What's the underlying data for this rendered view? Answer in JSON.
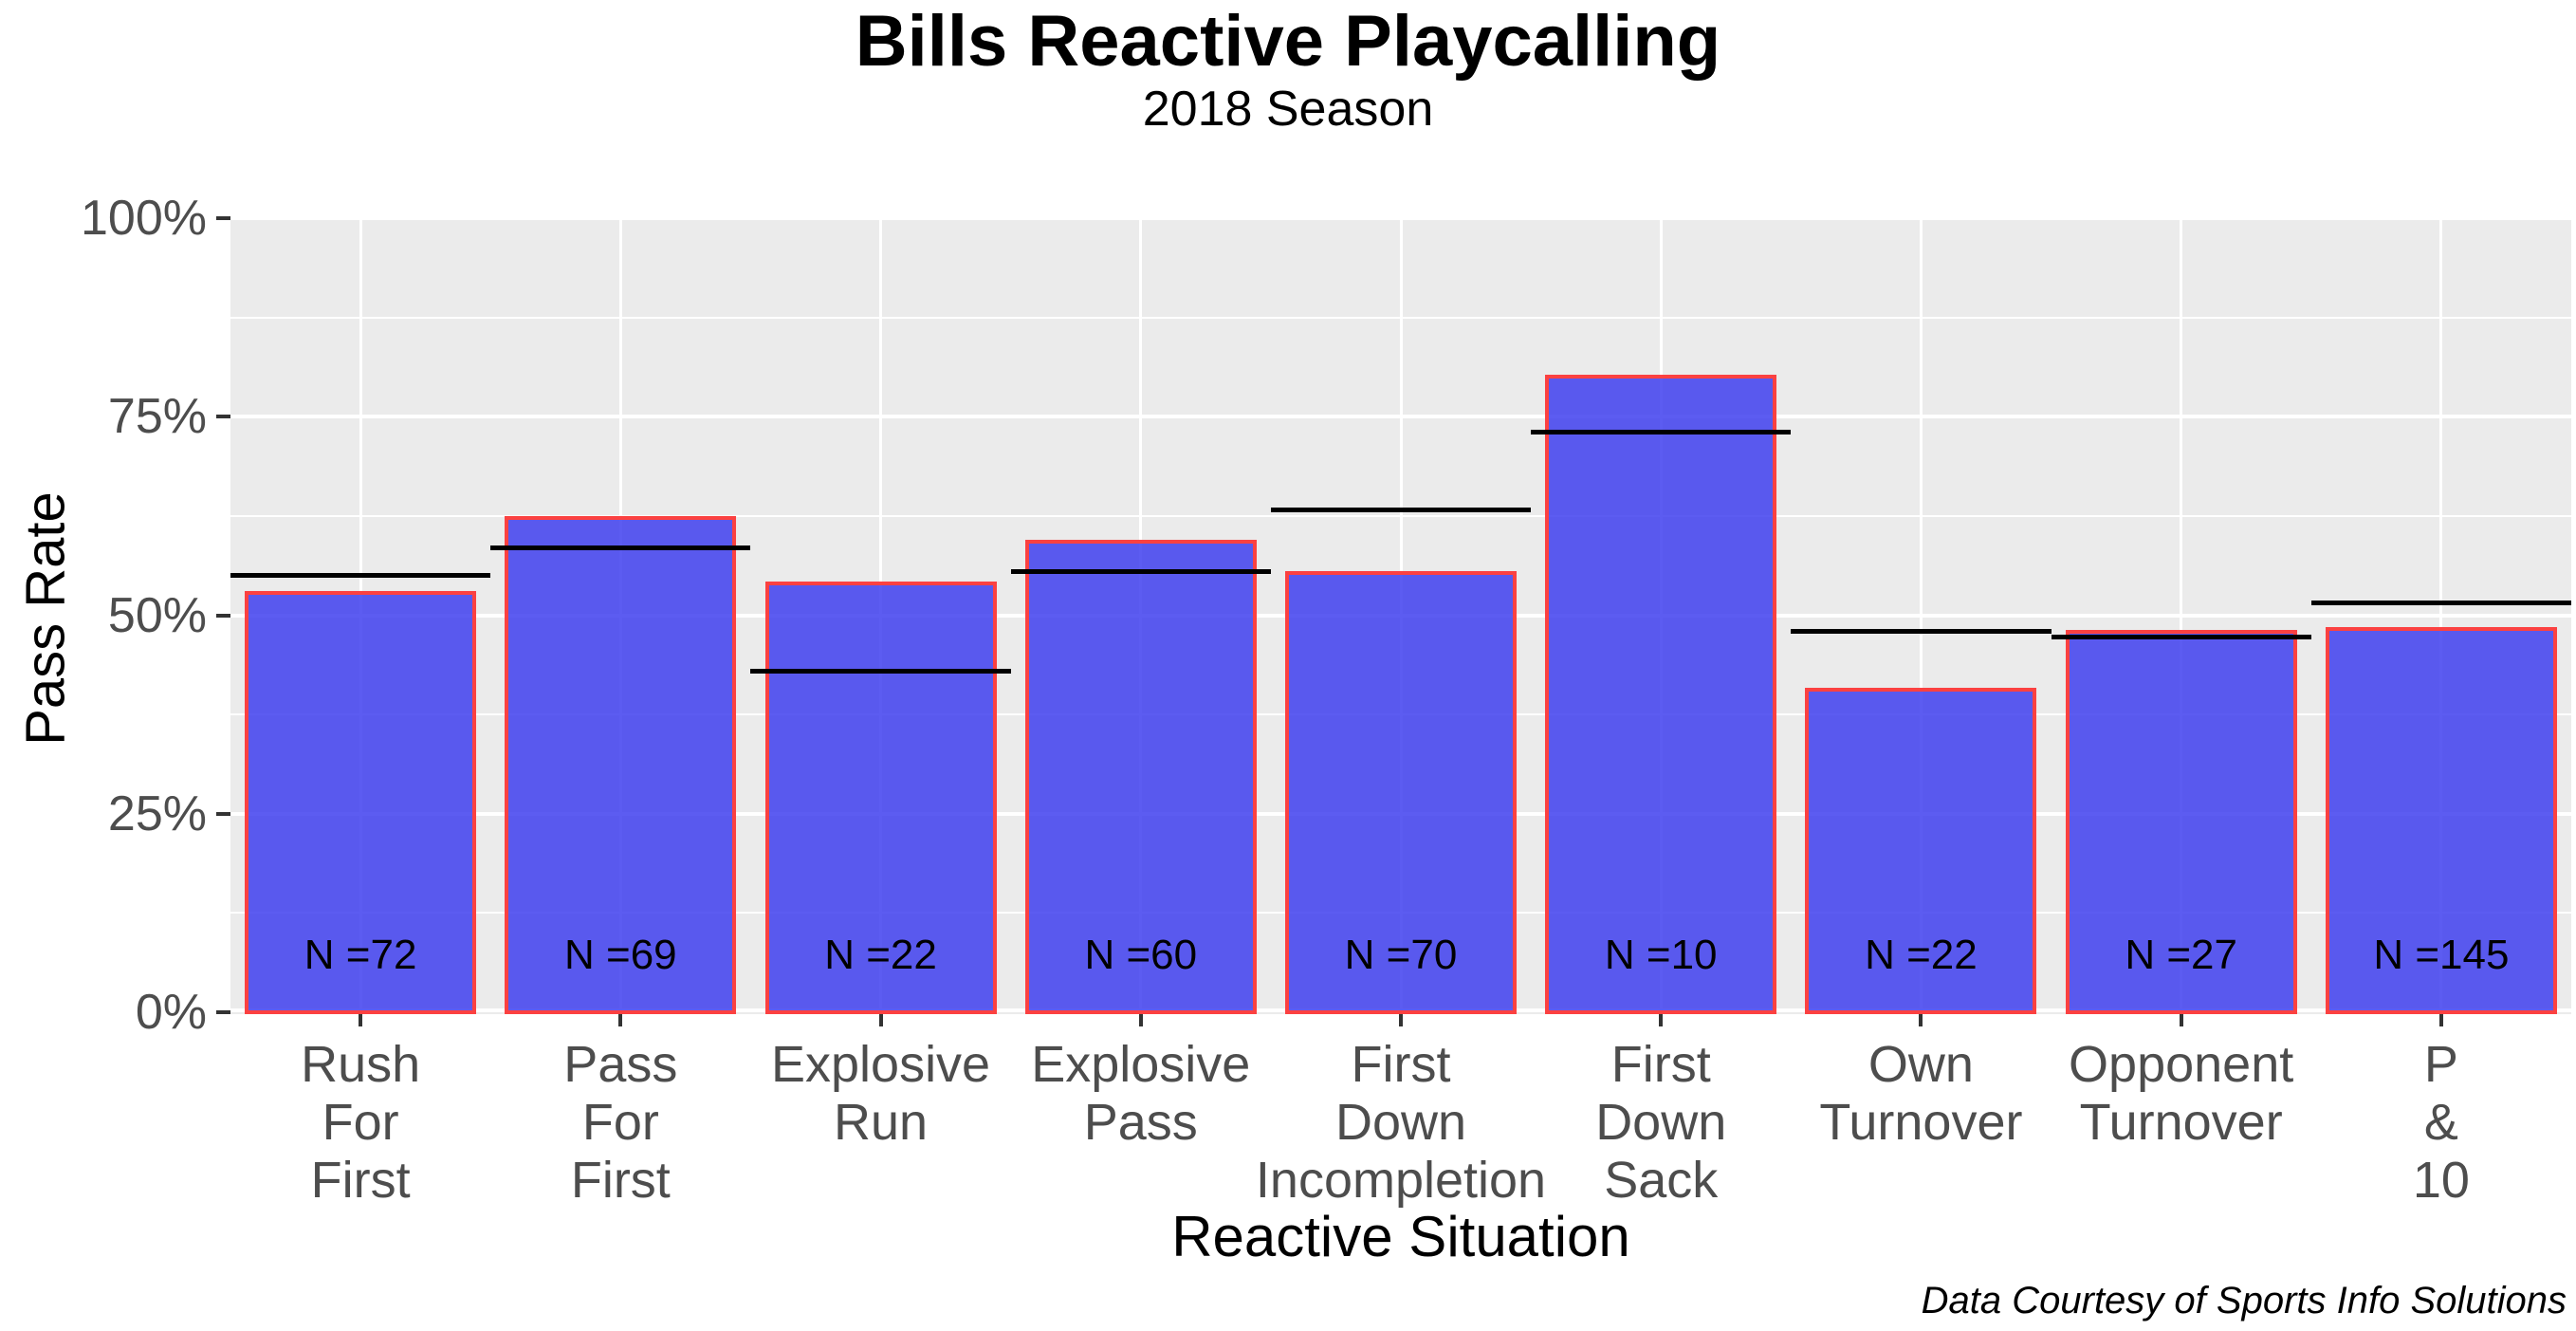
{
  "header": {
    "title": "Bills Reactive Playcalling",
    "subtitle": "2018 Season"
  },
  "caption": "Data Courtesy of Sports Info Solutions",
  "chart_data": {
    "type": "bar",
    "title": "Bills Reactive Playcalling",
    "subtitle": "2018 Season",
    "xlabel": "Reactive Situation",
    "ylabel": "Pass Rate",
    "ylim": [
      0,
      100
    ],
    "grid": true,
    "legend_position": "none",
    "yticks": [
      {
        "value": 0,
        "label": "0%"
      },
      {
        "value": 25,
        "label": "25%"
      },
      {
        "value": 50,
        "label": "50%"
      },
      {
        "value": 75,
        "label": "75%"
      },
      {
        "value": 100,
        "label": "100%"
      }
    ],
    "minor_yticks": [
      12.5,
      37.5,
      62.5,
      87.5
    ],
    "categories": [
      "Rush For First",
      "Pass For First",
      "Explosive Run",
      "Explosive Pass",
      "First Down Incompletion",
      "First Down Sack",
      "Own Turnover",
      "Opponent Turnover",
      "P & 10"
    ],
    "category_label_lines": [
      "Rush\nFor\nFirst",
      "Pass\nFor\nFirst",
      "Explosive\nRun",
      "Explosive\nPass",
      "First\nDown\nIncompletion",
      "First\nDown\nSack",
      "Own\nTurnover",
      "Opponent\nTurnover",
      "P\n&\n10"
    ],
    "series": [
      {
        "name": "Bills pass rate (bar height, %)",
        "type": "bar",
        "values": [
          52.8,
          62.3,
          54.0,
          59.2,
          55.3,
          80.0,
          40.6,
          47.9,
          48.3
        ]
      },
      {
        "name": "Reference line (league average pass rate, %)",
        "type": "segment",
        "values": [
          55.0,
          58.5,
          43.0,
          55.5,
          63.3,
          73.0,
          48.0,
          47.2,
          51.5
        ]
      }
    ],
    "n_values": [
      72,
      69,
      22,
      60,
      70,
      10,
      22,
      27,
      145
    ],
    "n_labels": [
      "N =72",
      "N =69",
      "N =22",
      "N =60",
      "N =70",
      "N =10",
      "N =22",
      "N =27",
      "N =145"
    ]
  },
  "colors": {
    "bar_fill": "rgba(64,64,238,0.85)",
    "bar_stroke": "#FB4141",
    "avg_line": "#000000",
    "panel_bg": "#EBEBEB",
    "gridline": "#FFFFFF",
    "tick_mark": "#333333",
    "axis_text": "#4D4D4D",
    "title_text": "#000000"
  }
}
